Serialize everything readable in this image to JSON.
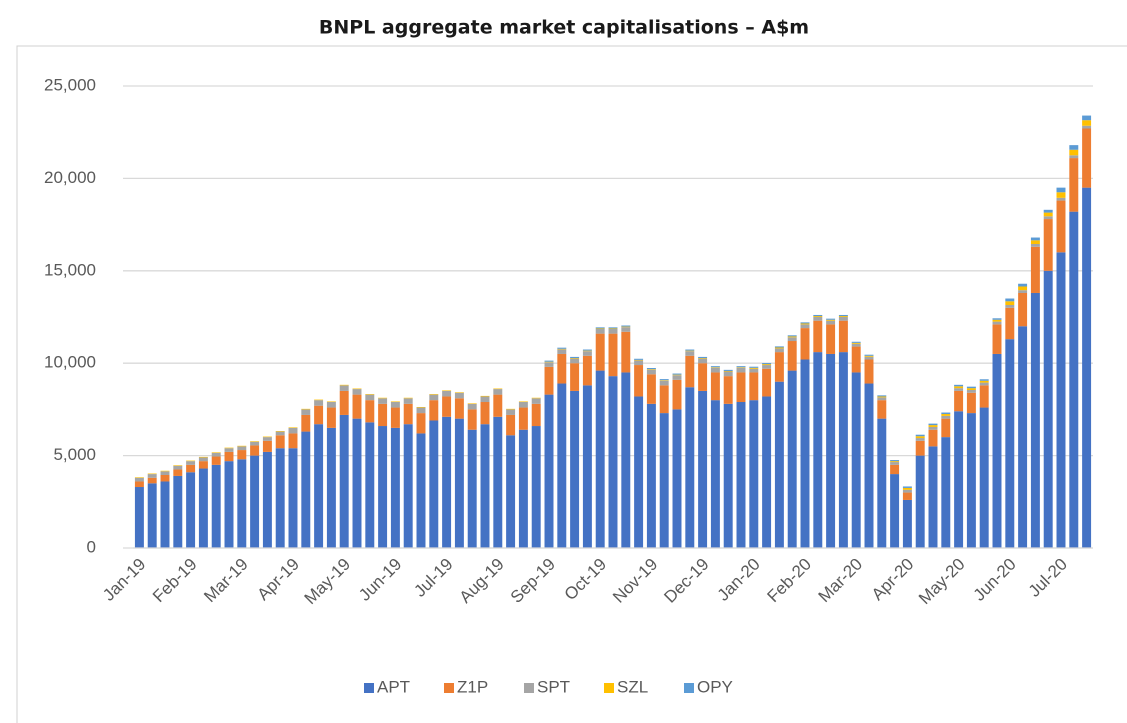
{
  "chart_data": {
    "type": "stacked_bar",
    "title": "BNPL aggregate market capitalisations – A$m",
    "categories": [
      "Jan-19",
      null,
      null,
      null,
      "Feb-19",
      null,
      null,
      null,
      "Mar-19",
      null,
      null,
      null,
      "Apr-19",
      null,
      null,
      null,
      "May-19",
      null,
      null,
      null,
      "Jun-19",
      null,
      null,
      null,
      "Jul-19",
      null,
      null,
      null,
      "Aug-19",
      null,
      null,
      null,
      "Sep-19",
      null,
      null,
      null,
      "Oct-19",
      null,
      null,
      null,
      "Nov-19",
      null,
      null,
      null,
      "Dec-19",
      null,
      null,
      null,
      "Jan-20",
      null,
      null,
      null,
      "Feb-20",
      null,
      null,
      null,
      "Mar-20",
      null,
      null,
      null,
      "Apr-20",
      null,
      null,
      null,
      "May-20",
      null,
      null,
      null,
      "Jun-20",
      null,
      null,
      null,
      "Jul-20",
      null,
      null
    ],
    "series": [
      {
        "name": "APT",
        "color": "#4472c4",
        "values": [
          3300,
          3500,
          3600,
          3900,
          4100,
          4300,
          4500,
          4700,
          4800,
          5000,
          5200,
          5400,
          5400,
          6300,
          6700,
          6500,
          7200,
          7000,
          6800,
          6600,
          6500,
          6700,
          6200,
          6900,
          7100,
          7000,
          6400,
          6700,
          7100,
          6100,
          6400,
          6600,
          8300,
          8900,
          8500,
          8800,
          9600,
          9300,
          9500,
          8200,
          7800,
          7300,
          7500,
          8700,
          8500,
          8000,
          7800,
          7900,
          8000,
          8200,
          9000,
          9600,
          10200,
          10600,
          10500,
          10600,
          9500,
          8900,
          7000,
          4000,
          2600,
          5000,
          5500,
          6000,
          7400,
          7300,
          7600,
          10500,
          11300,
          12000,
          13800,
          15000,
          16000,
          18200,
          19500
        ]
      },
      {
        "name": "Z1P",
        "color": "#ed7d31",
        "values": [
          300,
          300,
          350,
          350,
          400,
          400,
          450,
          500,
          500,
          550,
          600,
          700,
          800,
          900,
          1000,
          1100,
          1300,
          1300,
          1200,
          1200,
          1100,
          1100,
          1100,
          1100,
          1100,
          1100,
          1100,
          1200,
          1200,
          1100,
          1200,
          1200,
          1500,
          1600,
          1500,
          1600,
          2000,
          2300,
          2200,
          1700,
          1600,
          1500,
          1600,
          1700,
          1500,
          1500,
          1500,
          1600,
          1500,
          1500,
          1600,
          1600,
          1700,
          1700,
          1600,
          1700,
          1400,
          1300,
          1000,
          500,
          400,
          800,
          900,
          1000,
          1100,
          1100,
          1200,
          1600,
          1700,
          1800,
          2500,
          2800,
          2800,
          2900,
          3200
        ]
      },
      {
        "name": "SPT",
        "color": "#a5a5a5",
        "values": [
          200,
          200,
          200,
          200,
          200,
          200,
          200,
          200,
          200,
          200,
          200,
          200,
          300,
          300,
          300,
          300,
          300,
          300,
          300,
          300,
          300,
          300,
          300,
          300,
          300,
          300,
          300,
          300,
          300,
          300,
          300,
          300,
          250,
          250,
          250,
          250,
          250,
          250,
          250,
          250,
          250,
          250,
          250,
          250,
          250,
          250,
          250,
          250,
          200,
          200,
          200,
          200,
          200,
          200,
          200,
          200,
          150,
          150,
          150,
          150,
          150,
          150,
          150,
          150,
          150,
          150,
          150,
          150,
          150,
          150,
          150,
          150,
          150,
          150,
          150
        ]
      },
      {
        "name": "SZL",
        "color": "#ffc000",
        "values": [
          30,
          30,
          30,
          30,
          30,
          30,
          30,
          30,
          30,
          30,
          30,
          30,
          30,
          30,
          30,
          30,
          30,
          30,
          30,
          30,
          30,
          30,
          30,
          30,
          30,
          30,
          30,
          30,
          30,
          30,
          30,
          30,
          30,
          30,
          30,
          30,
          30,
          30,
          30,
          30,
          30,
          30,
          30,
          30,
          30,
          30,
          30,
          30,
          50,
          50,
          50,
          50,
          50,
          50,
          50,
          50,
          50,
          50,
          50,
          50,
          100,
          100,
          100,
          100,
          100,
          100,
          100,
          100,
          200,
          200,
          200,
          200,
          300,
          300,
          300
        ]
      },
      {
        "name": "OPY",
        "color": "#5b9bd5",
        "values": [
          0,
          0,
          0,
          0,
          0,
          0,
          0,
          0,
          0,
          0,
          0,
          0,
          0,
          0,
          0,
          0,
          0,
          0,
          0,
          0,
          0,
          0,
          0,
          0,
          0,
          0,
          0,
          0,
          0,
          0,
          0,
          0,
          60,
          60,
          60,
          60,
          60,
          60,
          60,
          60,
          60,
          60,
          60,
          60,
          60,
          60,
          60,
          60,
          60,
          60,
          60,
          60,
          60,
          60,
          60,
          60,
          60,
          60,
          60,
          60,
          80,
          80,
          80,
          80,
          80,
          80,
          80,
          80,
          150,
          150,
          150,
          150,
          250,
          250,
          250
        ]
      }
    ],
    "ylim": [
      0,
      25000
    ],
    "yticks": [
      0,
      {
        "value": 5000,
        "label": "5,000"
      },
      {
        "value": 10000,
        "label": "10,000"
      },
      {
        "value": 15000,
        "label": "15,000"
      },
      {
        "value": 20000,
        "label": "20,000"
      },
      {
        "value": 25000,
        "label": "25,000"
      }
    ],
    "grid": true,
    "legend": "bottom"
  }
}
